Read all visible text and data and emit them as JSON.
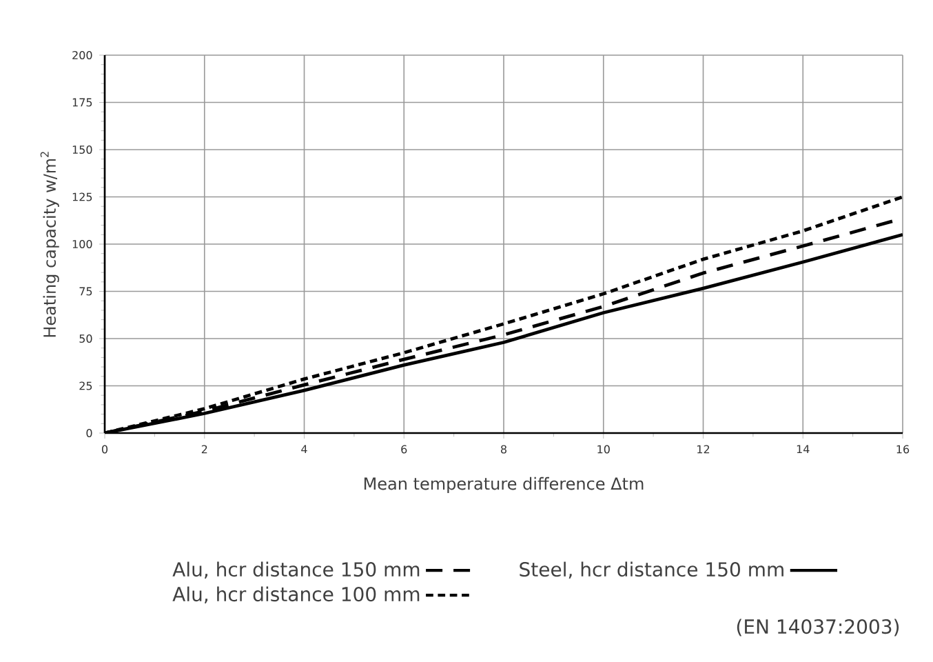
{
  "chart_data": {
    "type": "line",
    "xlabel": "Mean temperature difference Δtm",
    "ylabel": "Heating capacity w/m$^{2}$",
    "x": [
      0,
      2,
      4,
      6,
      8,
      10,
      12,
      14,
      16
    ],
    "series": [
      {
        "name": "Alu, hcr distance 150 mm",
        "color": "#000000",
        "line_style": "dashed",
        "values": [
          0,
          11.6,
          25.5,
          39,
          52,
          67,
          84.7,
          99,
          113.6
        ]
      },
      {
        "name": "Steel, hcr distance 150 mm",
        "color": "#000000",
        "line_style": "solid",
        "values": [
          0,
          10.4,
          22.6,
          36,
          48,
          63.7,
          76.6,
          90.5,
          105
        ]
      },
      {
        "name": "Alu, hcr distance 100 mm",
        "color": "#000000",
        "line_style": "dotted",
        "values": [
          0,
          12.9,
          28.6,
          42.5,
          57.8,
          73.7,
          92,
          107,
          125
        ]
      }
    ],
    "xlim": [
      0,
      16
    ],
    "ylim": [
      0,
      200
    ],
    "xticks": [
      0,
      2,
      4,
      6,
      8,
      10,
      12,
      14,
      16
    ],
    "yticks": [
      0,
      25,
      50,
      75,
      100,
      125,
      150,
      175,
      200
    ],
    "grid": true,
    "legend": "bottom",
    "marker": "none",
    "annotations": [
      "(EN 14037:2003)"
    ]
  }
}
